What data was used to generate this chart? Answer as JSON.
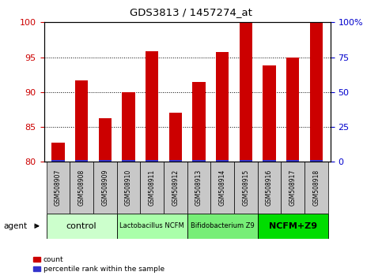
{
  "title": "GDS3813 / 1457274_at",
  "samples": [
    "GSM508907",
    "GSM508908",
    "GSM508909",
    "GSM508910",
    "GSM508911",
    "GSM508912",
    "GSM508913",
    "GSM508914",
    "GSM508915",
    "GSM508916",
    "GSM508917",
    "GSM508918"
  ],
  "count_values": [
    82.8,
    91.7,
    86.2,
    90.0,
    95.8,
    87.0,
    91.5,
    95.7,
    100.0,
    93.8,
    95.0,
    100.0
  ],
  "percentile_values": [
    0.3,
    0.3,
    0.3,
    0.3,
    0.3,
    0.3,
    0.3,
    0.3,
    0.3,
    0.3,
    0.3,
    0.3
  ],
  "ylim_left": [
    80,
    100
  ],
  "yticks_left": [
    80,
    85,
    90,
    95,
    100
  ],
  "yticks_right_pos": [
    80,
    85,
    90,
    95,
    100
  ],
  "yright_labels": [
    "0",
    "25",
    "50",
    "75",
    "100%"
  ],
  "bar_color_red": "#cc0000",
  "bar_color_blue": "#3333cc",
  "bar_width": 0.55,
  "groups": [
    {
      "label": "control",
      "start": 0,
      "end": 3,
      "color": "#ccffcc"
    },
    {
      "label": "Lactobacillus NCFM",
      "start": 3,
      "end": 6,
      "color": "#aaffaa"
    },
    {
      "label": "Bifidobacterium Z9",
      "start": 6,
      "end": 9,
      "color": "#77ee77"
    },
    {
      "label": "NCFM+Z9",
      "start": 9,
      "end": 12,
      "color": "#00dd00"
    }
  ],
  "agent_label": "agent",
  "legend_count": "count",
  "legend_percentile": "percentile rank within the sample",
  "left_tick_color": "#cc0000",
  "right_tick_color": "#0000cc",
  "plot_bg": "#ffffff",
  "label_bg": "#c8c8c8"
}
